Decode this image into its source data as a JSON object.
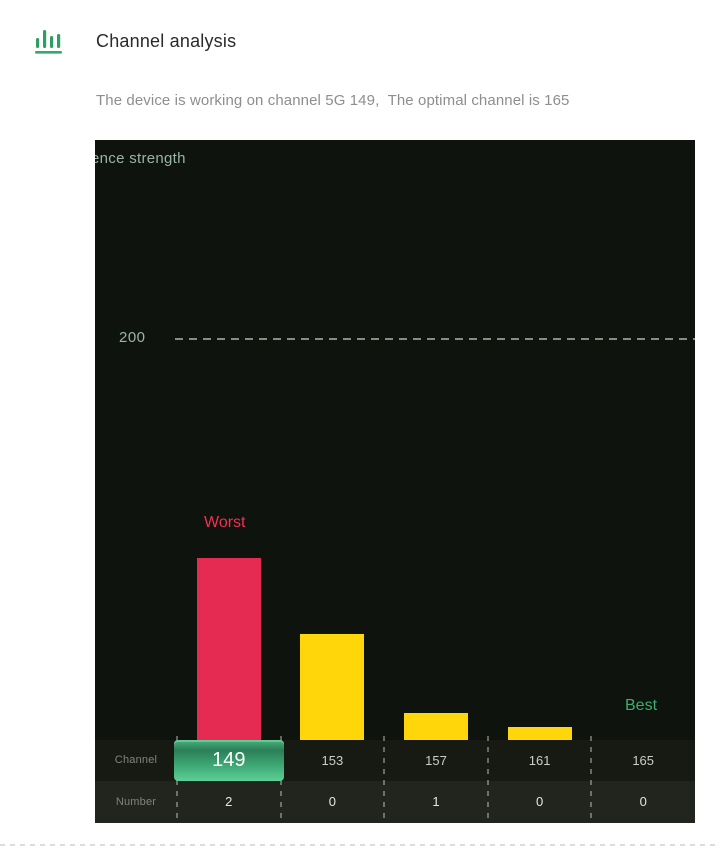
{
  "header": {
    "title": "Channel analysis",
    "icon": "bar-chart-icon"
  },
  "subtitle": "The device is working on channel 5G 149,  The optimal channel is 165",
  "chart": {
    "y_axis_label": "ence strength",
    "reference_value": "200",
    "annotations": {
      "worst": "Worst",
      "best": "Best"
    },
    "row_labels": {
      "channel": "Channel",
      "number": "Number"
    },
    "current_channel": "149",
    "colors": {
      "chart_background": "#0f130e",
      "channel_row_background": "#171a12",
      "number_row_background": "#21251d",
      "axis_text": "#9cb3a9",
      "worst_text": "#ee3150",
      "best_text": "#3eac6d",
      "highlight_green": "#4db685",
      "icon_green": "#2f9e63"
    }
  },
  "chart_data": {
    "type": "bar",
    "title": "Channel analysis",
    "xlabel": "Channel",
    "ylabel": "Interference strength (visible clipped text: ence strength)",
    "categories": [
      "149",
      "153",
      "157",
      "161",
      "165"
    ],
    "series": [
      {
        "name": "Interference strength",
        "values": [
          91,
          53,
          13.5,
          6.5,
          0
        ]
      },
      {
        "name": "Number",
        "values": [
          2,
          0,
          1,
          0,
          0
        ]
      }
    ],
    "bar_colors": [
      "#e62b52",
      "#ffd60a",
      "#ffd60a",
      "#ffd60a",
      "#ffd60a"
    ],
    "reference_line": {
      "value": 200,
      "style": "dashed",
      "color": "#878d83"
    },
    "ylim": [
      0,
      300
    ],
    "grid": false,
    "legend": false,
    "annotations": [
      {
        "text": "Worst",
        "category": "149",
        "color": "#ee3150"
      },
      {
        "text": "Best",
        "category": "165",
        "color": "#3eac6d"
      }
    ]
  }
}
